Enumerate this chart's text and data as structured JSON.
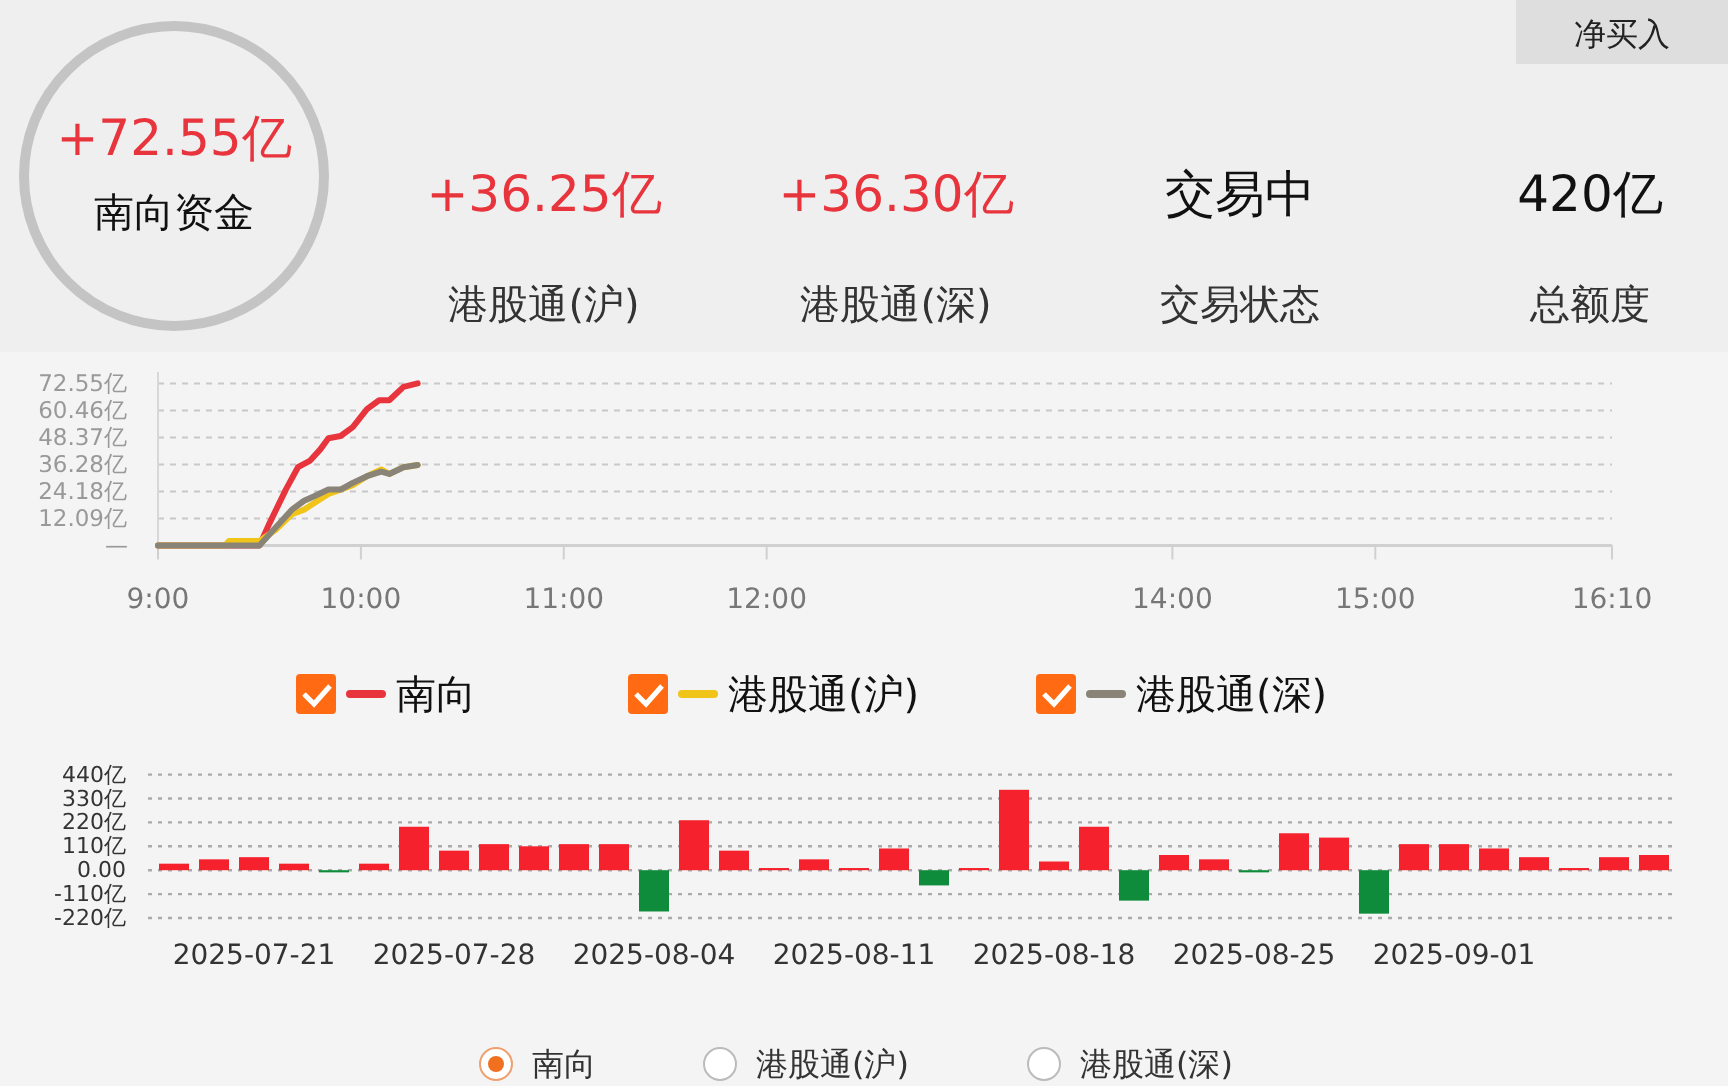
{
  "chart_data": [
    {
      "type": "other",
      "annotations": [
        "净买入",
        "+72.55亿",
        "南向资金",
        "+36.25亿",
        "港股通(沪)",
        "+36.30亿",
        "港股通(深)",
        "交易中",
        "交易状态",
        "420亿",
        "总额度"
      ]
    },
    {
      "type": "line",
      "xlim": [
        9,
        16.1667
      ],
      "xticks": [
        {
          "value": 9,
          "label": "9:00"
        },
        {
          "value": 10,
          "label": "10:00"
        },
        {
          "value": 11,
          "label": "11:00"
        },
        {
          "value": 12,
          "label": "12:00"
        },
        {
          "value": 14,
          "label": "14:00"
        },
        {
          "value": 15,
          "label": "15:00"
        },
        {
          "value": 16.1667,
          "label": "16:10"
        }
      ],
      "ylim": [
        0,
        72.55
      ],
      "yticks": [
        {
          "value": 0,
          "label": "—"
        },
        {
          "value": 12.09,
          "label": "12.09亿"
        },
        {
          "value": 24.18,
          "label": "24.18亿"
        },
        {
          "value": 36.28,
          "label": "36.28亿"
        },
        {
          "value": 48.37,
          "label": "48.37亿"
        },
        {
          "value": 60.46,
          "label": "60.46亿"
        },
        {
          "value": 72.55,
          "label": "72.55亿"
        }
      ],
      "grid": "y",
      "legend": "bottom",
      "marker": "none",
      "line_style": "solid",
      "series": [
        {
          "name": "南向",
          "color": "#e8343c",
          "x": [
            9,
            9.5,
            9.55,
            9.63,
            9.69,
            9.75,
            9.8,
            9.84,
            9.9,
            9.96,
            10.03,
            10.09,
            10.14,
            10.21,
            10.28
          ],
          "values": [
            0,
            0,
            10,
            25,
            35,
            38,
            43,
            48,
            49,
            53,
            61,
            65,
            65,
            71,
            72.55
          ]
        },
        {
          "name": "港股通(沪)",
          "color": "#f0c419",
          "x": [
            9,
            9.33,
            9.35,
            9.5,
            9.58,
            9.66,
            9.72,
            9.77,
            9.84,
            9.9,
            9.96,
            10.03,
            10.1,
            10.14,
            10.21,
            10.28
          ],
          "values": [
            0,
            0,
            2,
            2,
            7,
            14,
            16,
            19,
            23,
            25,
            27,
            31,
            34,
            32,
            35,
            36
          ]
        },
        {
          "name": "港股通(深)",
          "color": "#8a8478",
          "x": [
            9,
            9.5,
            9.58,
            9.66,
            9.72,
            9.77,
            9.84,
            9.9,
            9.96,
            10.03,
            10.1,
            10.14,
            10.21,
            10.28
          ],
          "values": [
            0,
            0,
            8,
            16,
            20,
            22,
            25,
            25,
            28,
            31,
            33,
            32,
            35,
            36
          ]
        }
      ]
    },
    {
      "type": "bar",
      "categories": [
        null,
        null,
        "2025-07-21",
        null,
        null,
        null,
        null,
        "2025-07-28",
        null,
        null,
        null,
        null,
        "2025-08-04",
        null,
        null,
        null,
        null,
        "2025-08-11",
        null,
        null,
        null,
        null,
        "2025-08-18",
        null,
        null,
        null,
        null,
        "2025-08-25",
        null,
        null,
        null,
        null,
        "2025-09-01",
        null,
        null,
        null,
        null,
        null
      ],
      "ylim": [
        -220,
        440
      ],
      "yticks": [
        {
          "value": -220,
          "label": "-220亿"
        },
        {
          "value": -110,
          "label": "-110亿"
        },
        {
          "value": 0,
          "label": "0.00"
        },
        {
          "value": 110,
          "label": "110亿"
        },
        {
          "value": 220,
          "label": "220亿"
        },
        {
          "value": 330,
          "label": "330亿"
        },
        {
          "value": 440,
          "label": "440亿"
        }
      ],
      "grid": "y",
      "legend": "bottom",
      "annotations": [
        "港股通(沪)",
        "港股通(深)"
      ],
      "series": [
        {
          "name": "南向",
          "values": [
            30,
            50,
            60,
            30,
            -10,
            30,
            200,
            90,
            120,
            110,
            120,
            120,
            -190,
            230,
            90,
            10,
            50,
            10,
            100,
            -70,
            10,
            370,
            40,
            200,
            -140,
            70,
            50,
            -10,
            170,
            150,
            -200,
            120,
            120,
            100,
            60,
            10,
            60,
            70
          ],
          "colors": [
            "#f5222d",
            "#f5222d",
            "#f5222d",
            "#f5222d",
            "#0f8c3b",
            "#f5222d",
            "#f5222d",
            "#f5222d",
            "#f5222d",
            "#f5222d",
            "#f5222d",
            "#f5222d",
            "#0f8c3b",
            "#f5222d",
            "#f5222d",
            "#f5222d",
            "#f5222d",
            "#f5222d",
            "#f5222d",
            "#0f8c3b",
            "#f5222d",
            "#f5222d",
            "#f5222d",
            "#f5222d",
            "#0f8c3b",
            "#f5222d",
            "#f5222d",
            "#0f8c3b",
            "#f5222d",
            "#f5222d",
            "#0f8c3b",
            "#f5222d",
            "#f5222d",
            "#f5222d",
            "#f5222d",
            "#f5222d",
            "#f5222d",
            "#f5222d"
          ]
        }
      ]
    }
  ]
}
